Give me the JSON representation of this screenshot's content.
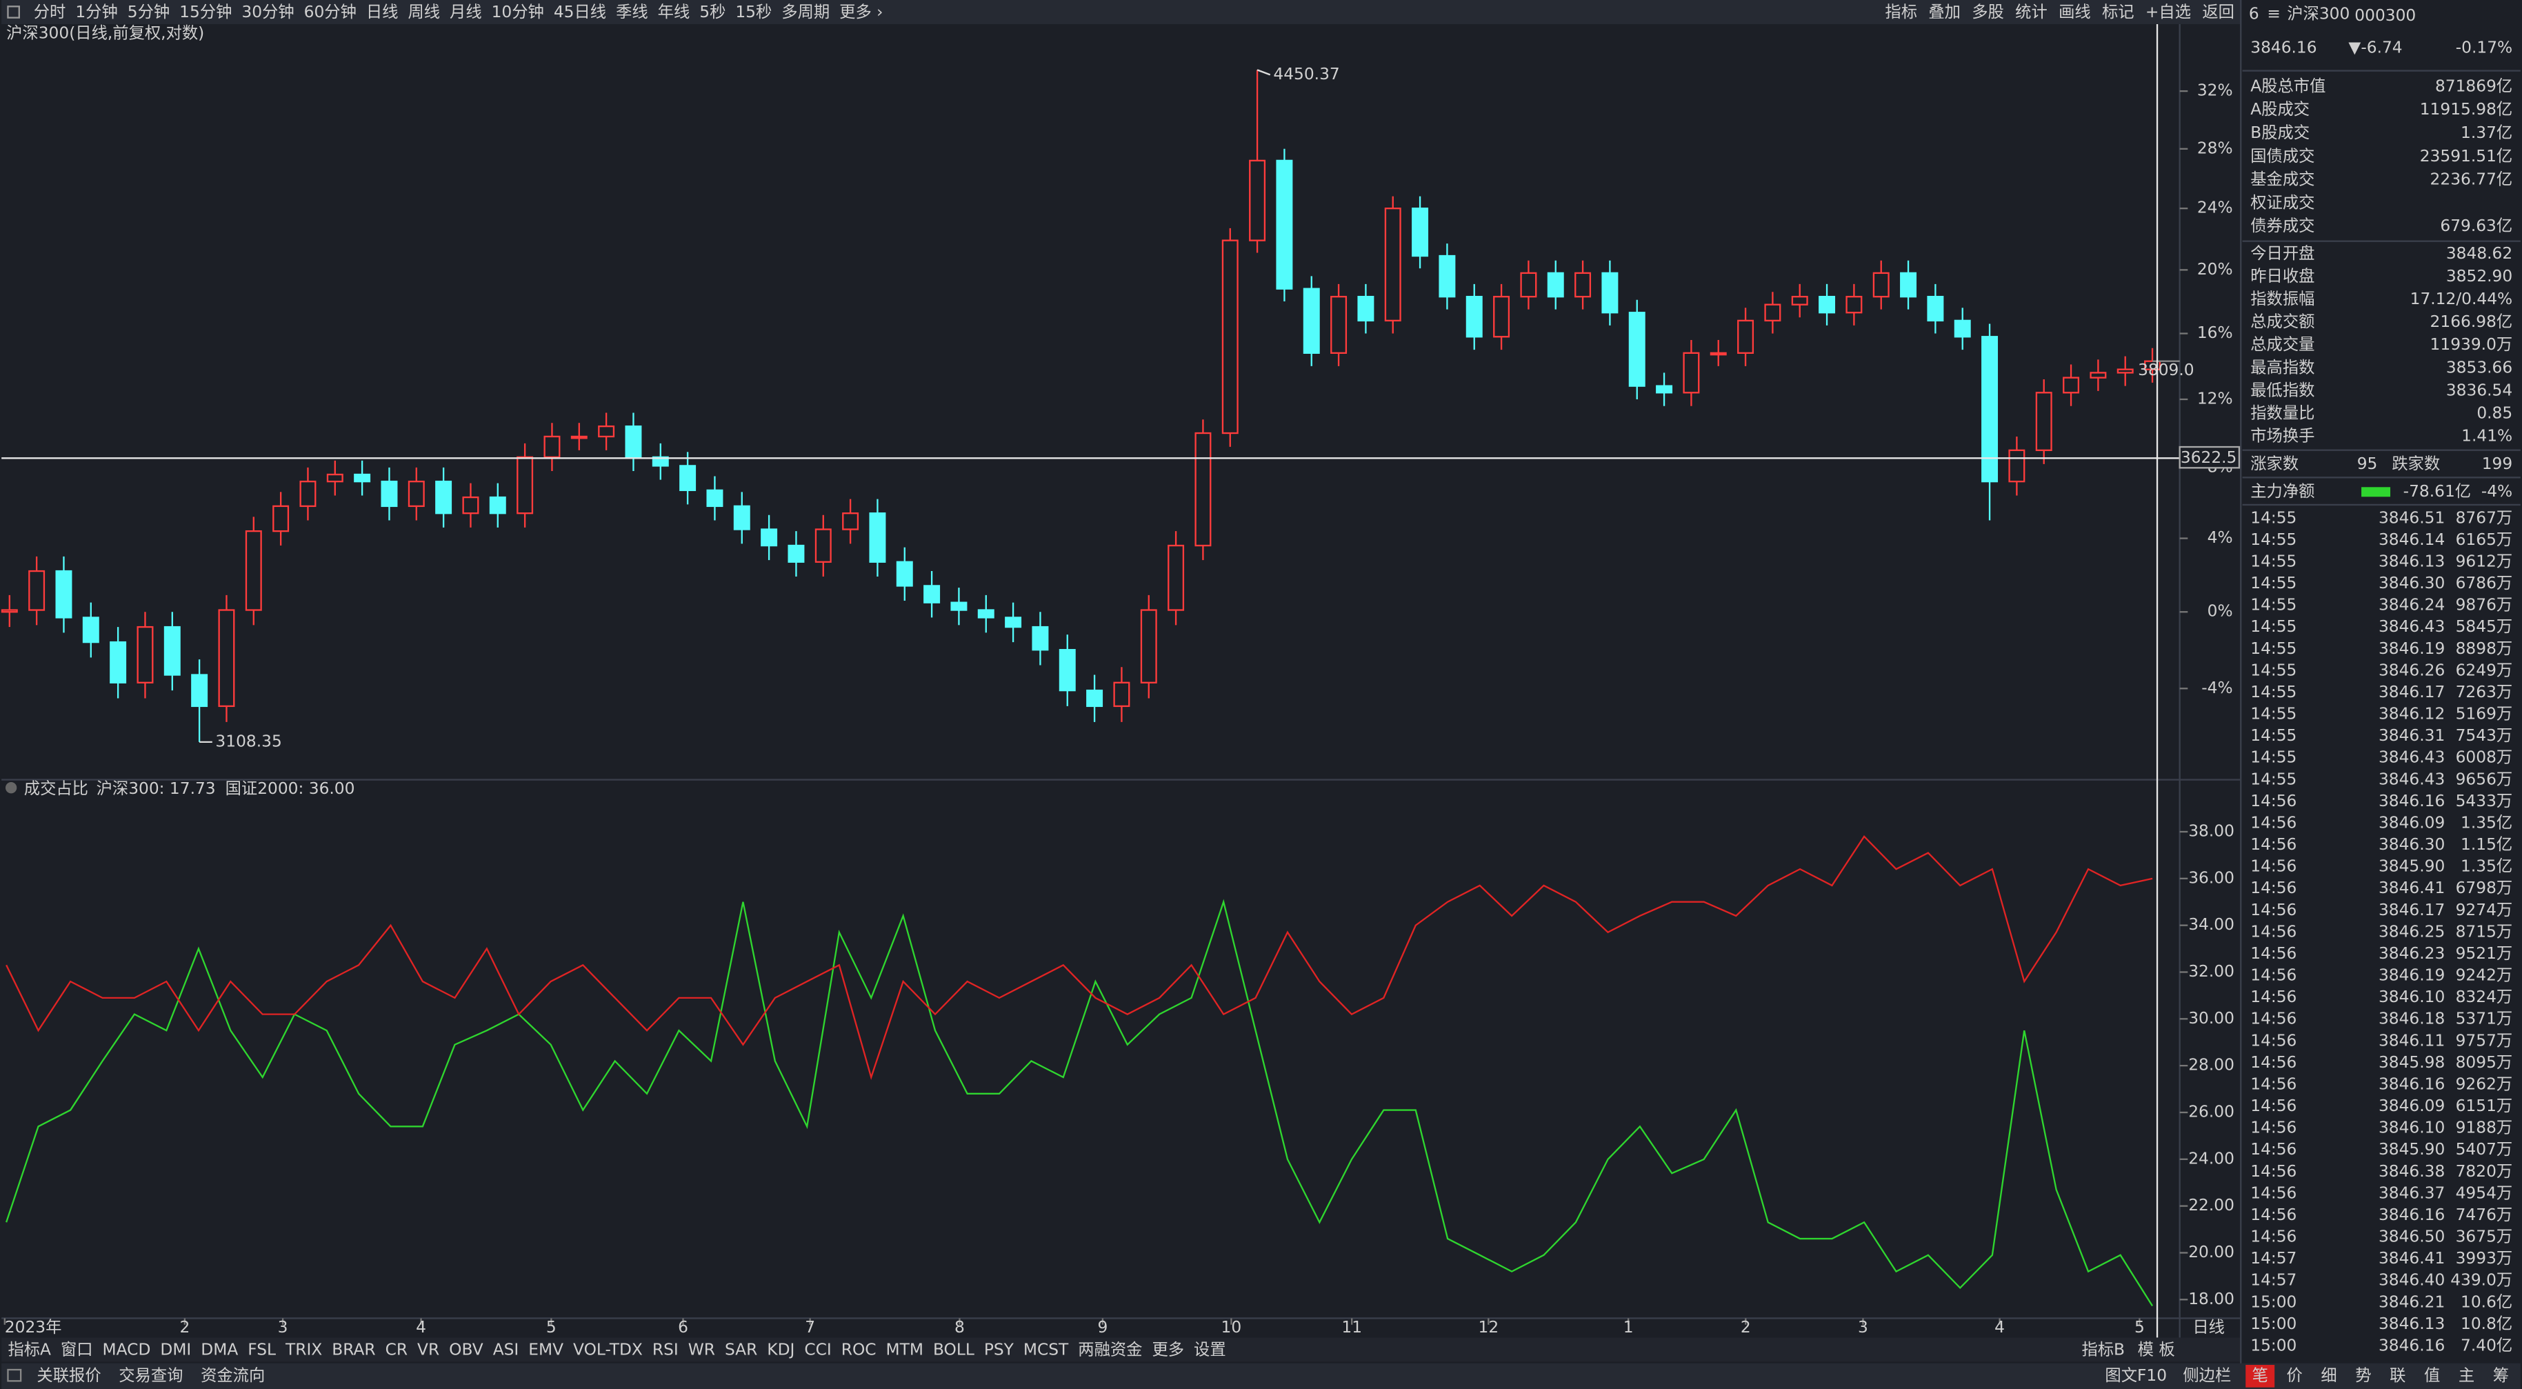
{
  "toolbar": {
    "periods": [
      "分时",
      "1分钟",
      "5分钟",
      "15分钟",
      "30分钟",
      "60分钟",
      "日线",
      "周线",
      "月线",
      "10分钟",
      "45日线",
      "季线",
      "年线",
      "5秒",
      "15秒",
      "多周期",
      "更多 ›"
    ],
    "active_index": 6,
    "active_color": "#ff4040",
    "tools": [
      "指标",
      "叠加",
      "多股",
      "统计",
      "画线",
      "标记",
      "+自选",
      "返回"
    ]
  },
  "chart_title": "沪深300(日线,前复权,对数)",
  "price_chart": {
    "type": "candlestick",
    "log": true,
    "up_color": "#ff3c3c",
    "down_color": "#54fcfc",
    "open": [
      0,
      0.1,
      2.2,
      -0.3,
      -1.6,
      -3.7,
      -0.8,
      -3.3,
      -4.9,
      0.1,
      4.4,
      5.8,
      7.2,
      7.6,
      7.2,
      5.8,
      7.2,
      5.4,
      6.3,
      5.4,
      8.6,
      9.8,
      9.8,
      10.4,
      8.6,
      8.1,
      6.7,
      5.8,
      4.5,
      3.6,
      2.7,
      4.5,
      5.4,
      2.7,
      1.4,
      0.5,
      0.1,
      -0.3,
      -0.8,
      -2.0,
      -4.1,
      -4.9,
      -3.7,
      0.1,
      3.6,
      10.0,
      21.9,
      27.2,
      18.8,
      14.8,
      18.3,
      16.8,
      24.0,
      20.9,
      18.3,
      15.8,
      18.3,
      19.8,
      18.3,
      19.8,
      17.3,
      12.8,
      12.4,
      14.8,
      14.8,
      16.8,
      17.8,
      18.3,
      17.3,
      18.3,
      19.8,
      18.3,
      16.8,
      15.8,
      7.2,
      9.0,
      12.4,
      13.3,
      13.6,
      13.8
    ],
    "high": [
      0.9,
      3.0,
      3.0,
      0.5,
      -0.8,
      0.0,
      0.0,
      -2.5,
      0.9,
      5.2,
      6.6,
      8.0,
      8.4,
      8.4,
      8.0,
      8.0,
      8.0,
      7.1,
      7.1,
      9.4,
      10.6,
      10.6,
      11.2,
      11.2,
      9.4,
      8.9,
      7.5,
      6.6,
      5.3,
      4.4,
      5.3,
      6.2,
      6.2,
      3.5,
      2.2,
      1.3,
      0.9,
      0.5,
      0.0,
      -1.2,
      -3.3,
      -2.9,
      0.9,
      4.4,
      10.8,
      22.7,
      33.5,
      28.0,
      19.6,
      19.1,
      19.1,
      24.8,
      24.8,
      21.7,
      19.1,
      19.1,
      20.6,
      20.6,
      20.6,
      20.6,
      18.1,
      13.6,
      15.6,
      15.6,
      17.6,
      18.6,
      19.1,
      19.1,
      19.1,
      20.6,
      20.6,
      19.1,
      17.6,
      16.6,
      9.8,
      13.2,
      14.1,
      14.4,
      14.6,
      15.1
    ],
    "low": [
      -0.8,
      -0.7,
      -1.1,
      -2.4,
      -4.5,
      -4.5,
      -4.1,
      -6.7,
      -5.7,
      -0.7,
      3.6,
      5.0,
      6.4,
      6.4,
      5.0,
      5.0,
      4.6,
      4.6,
      4.6,
      4.6,
      7.8,
      9.0,
      9.0,
      7.8,
      7.3,
      5.9,
      5.0,
      3.7,
      2.8,
      1.9,
      1.9,
      3.7,
      1.9,
      0.6,
      -0.3,
      -0.7,
      -1.1,
      -1.6,
      -2.8,
      -4.9,
      -5.7,
      -5.7,
      -4.5,
      -0.7,
      2.8,
      9.2,
      21.1,
      18.0,
      14.0,
      14.0,
      16.0,
      16.0,
      20.1,
      17.5,
      15.0,
      15.0,
      17.5,
      17.5,
      17.5,
      16.5,
      12.0,
      11.6,
      11.6,
      14.0,
      14.0,
      16.0,
      17.0,
      16.5,
      16.5,
      17.5,
      17.5,
      16.0,
      15.0,
      5.0,
      6.4,
      8.2,
      11.6,
      12.5,
      12.8,
      13.0
    ],
    "close": [
      0.1,
      2.2,
      -0.3,
      -1.6,
      -3.7,
      -0.8,
      -3.3,
      -4.9,
      0.1,
      4.4,
      5.8,
      7.2,
      7.6,
      7.2,
      5.8,
      7.2,
      5.4,
      6.3,
      5.4,
      8.6,
      9.8,
      9.8,
      10.4,
      8.6,
      8.1,
      6.7,
      5.8,
      4.5,
      3.6,
      2.7,
      4.5,
      5.4,
      2.7,
      1.4,
      0.5,
      0.1,
      -0.3,
      -0.8,
      -2.0,
      -4.1,
      -4.9,
      -3.7,
      0.1,
      3.6,
      10.0,
      21.9,
      27.2,
      18.8,
      14.8,
      18.3,
      16.8,
      24.0,
      20.9,
      18.3,
      15.8,
      18.3,
      19.8,
      18.3,
      19.8,
      17.3,
      12.8,
      12.4,
      14.8,
      14.8,
      16.8,
      17.8,
      18.3,
      17.3,
      18.3,
      19.8,
      18.3,
      16.8,
      15.8,
      7.2,
      9.0,
      12.4,
      13.3,
      13.6,
      13.8,
      14.3
    ],
    "ylim": [
      -8.4,
      36.8
    ],
    "yticks": [
      {
        "value": -4,
        "label": "-4%"
      },
      {
        "value": 0,
        "label": "0%"
      },
      {
        "value": 4,
        "label": "4%"
      },
      {
        "value": 8,
        "label": "8%"
      },
      {
        "value": 12,
        "label": "12%"
      },
      {
        "value": 16,
        "label": "16%"
      },
      {
        "value": 20,
        "label": "20%"
      },
      {
        "value": 24,
        "label": "24%"
      },
      {
        "value": 28,
        "label": "28%"
      },
      {
        "value": 32,
        "label": "32%"
      }
    ],
    "max_label": 4450.37,
    "min_label": 3108.35,
    "last_label": "3809.0",
    "cursor_label": "3622.5"
  },
  "x_axis": {
    "labels": [
      "2023年",
      "2",
      "3",
      "4",
      "5",
      "6",
      "7",
      "8",
      "9",
      "10",
      "11",
      "12",
      "1",
      "2",
      "3",
      "4",
      "5"
    ],
    "period_label": "日线"
  },
  "ratio_chart": {
    "type": "line",
    "title": "成交占比",
    "series": [
      {
        "name": "沪深300: 17.73",
        "color": "#2fd62f",
        "values": [
          21.3,
          25.4,
          26.1,
          28.2,
          30.2,
          29.5,
          33.0,
          29.5,
          27.5,
          30.2,
          29.5,
          26.8,
          25.4,
          25.4,
          28.9,
          29.5,
          30.2,
          28.9,
          26.1,
          28.2,
          26.8,
          29.5,
          28.2,
          35.0,
          28.2,
          25.4,
          33.7,
          30.9,
          34.4,
          29.5,
          26.8,
          26.8,
          28.2,
          27.5,
          31.6,
          28.9,
          30.2,
          30.9,
          35.0,
          29.5,
          24.0,
          21.3,
          24.0,
          26.1,
          26.1,
          20.6,
          19.9,
          19.2,
          19.9,
          21.3,
          24.0,
          25.4,
          23.4,
          24.0,
          26.1,
          21.3,
          20.6,
          20.6,
          21.3,
          19.2,
          19.9,
          18.5,
          19.9,
          29.5,
          22.7,
          19.2,
          19.9,
          17.73
        ]
      },
      {
        "name": "国证2000: 36.00",
        "color": "#e02424",
        "values": [
          32.3,
          29.5,
          31.6,
          30.9,
          30.9,
          31.6,
          29.5,
          31.6,
          30.2,
          30.2,
          31.6,
          32.3,
          34.0,
          31.6,
          30.9,
          33.0,
          30.2,
          31.6,
          32.3,
          30.9,
          29.5,
          30.9,
          30.9,
          28.9,
          30.9,
          31.6,
          32.3,
          27.5,
          31.6,
          30.2,
          31.6,
          30.9,
          31.6,
          32.3,
          30.9,
          30.2,
          30.9,
          32.3,
          30.2,
          30.9,
          33.7,
          31.6,
          30.2,
          30.9,
          34.0,
          35.0,
          35.7,
          34.4,
          35.7,
          35.0,
          33.7,
          34.4,
          35.0,
          35.0,
          34.4,
          35.7,
          36.4,
          35.7,
          37.8,
          36.4,
          37.1,
          35.7,
          36.4,
          31.6,
          33.7,
          36.4,
          35.7,
          36.0
        ]
      }
    ],
    "ylim": [
      17.2,
      39.4
    ],
    "yticks": [
      {
        "value": 18,
        "label": "18.00"
      },
      {
        "value": 20,
        "label": "20.00"
      },
      {
        "value": 22,
        "label": "22.00"
      },
      {
        "value": 24,
        "label": "24.00"
      },
      {
        "value": 26,
        "label": "26.00"
      },
      {
        "value": 28,
        "label": "28.00"
      },
      {
        "value": 30,
        "label": "30.00"
      },
      {
        "value": 32,
        "label": "32.00"
      },
      {
        "value": 34,
        "label": "34.00"
      },
      {
        "value": 36,
        "label": "36.00"
      },
      {
        "value": 38,
        "label": "38.00"
      }
    ]
  },
  "indicator_tabs": {
    "left": [
      "指标A",
      "窗口",
      "MACD",
      "DMI",
      "DMA",
      "FSL",
      "TRIX",
      "BRAR",
      "CR",
      "VR",
      "OBV",
      "ASI",
      "EMV",
      "VOL-TDX",
      "RSI",
      "WR",
      "SAR",
      "KDJ",
      "CCI",
      "ROC",
      "MTM",
      "BOLL",
      "PSY",
      "MCST",
      "两融资金",
      "更多",
      "设置"
    ],
    "right": [
      "指标B",
      "模 板"
    ]
  },
  "status_bar": {
    "left": [
      "关联报价",
      "交易查询",
      "资金流向"
    ],
    "right": [
      "图文F10",
      "侧边栏"
    ],
    "tabs": [
      "笔",
      "价",
      "细",
      "势",
      "联",
      "值",
      "主",
      "筹"
    ]
  },
  "quote": {
    "rank": "6",
    "menu": "≡",
    "name": "沪深300",
    "code": "000300",
    "price": "3846.16",
    "change": "▼-6.74",
    "pct": "-0.17%",
    "market": [
      {
        "label": "A股总市值",
        "value": "871869亿"
      },
      {
        "label": "A股成交",
        "value": "11915.98亿"
      },
      {
        "label": "B股成交",
        "value": "1.37亿"
      },
      {
        "label": "国债成交",
        "value": "23591.51亿"
      },
      {
        "label": "基金成交",
        "value": "2236.77亿"
      },
      {
        "label": "权证成交"
      },
      {
        "label": "债券成交",
        "value": "679.63亿"
      }
    ],
    "stats": [
      {
        "label": "今日开盘",
        "value": "3848.62",
        "color": "#2fd62f"
      },
      {
        "label": "昨日收盘",
        "value": "3852.90"
      },
      {
        "label": "指数振幅",
        "value": "17.12/0.44%"
      },
      {
        "label": "总成交额",
        "value": "2166.98亿"
      },
      {
        "label": "总成交量",
        "value": "11939.0万"
      },
      {
        "label": "最高指数",
        "value": "3853.66",
        "color": "#ff4040"
      },
      {
        "label": "最低指数",
        "value": "3836.54",
        "color": "#2fd62f"
      },
      {
        "label": "指数量比",
        "value": "0.85",
        "color": "#2fd62f"
      },
      {
        "label": "市场换手",
        "value": "1.41%"
      }
    ],
    "breadth": {
      "up_label": "涨家数",
      "up": "95",
      "down_label": "跌家数",
      "down": "199"
    },
    "flow": {
      "label": "主力净额",
      "value": "-78.61亿",
      "pct": "-4%"
    },
    "ticks": [
      [
        "14:55",
        "3846.51",
        "8767万"
      ],
      [
        "14:55",
        "3846.14",
        "6165万"
      ],
      [
        "14:55",
        "3846.13",
        "9612万"
      ],
      [
        "14:55",
        "3846.30",
        "6786万"
      ],
      [
        "14:55",
        "3846.24",
        "9876万"
      ],
      [
        "14:55",
        "3846.43",
        "5845万"
      ],
      [
        "14:55",
        "3846.19",
        "8898万"
      ],
      [
        "14:55",
        "3846.26",
        "6249万"
      ],
      [
        "14:55",
        "3846.17",
        "7263万"
      ],
      [
        "14:55",
        "3846.12",
        "5169万"
      ],
      [
        "14:55",
        "3846.31",
        "7543万"
      ],
      [
        "14:55",
        "3846.43",
        "6008万"
      ],
      [
        "14:55",
        "3846.43",
        "9656万"
      ],
      [
        "14:56",
        "3846.16",
        "5433万"
      ],
      [
        "14:56",
        "3846.09",
        "1.35亿"
      ],
      [
        "14:56",
        "3846.30",
        "1.15亿"
      ],
      [
        "14:56",
        "3845.90",
        "1.35亿"
      ],
      [
        "14:56",
        "3846.41",
        "6798万"
      ],
      [
        "14:56",
        "3846.17",
        "9274万"
      ],
      [
        "14:56",
        "3846.25",
        "8715万"
      ],
      [
        "14:56",
        "3846.23",
        "9521万"
      ],
      [
        "14:56",
        "3846.19",
        "9242万"
      ],
      [
        "14:56",
        "3846.10",
        "8324万"
      ],
      [
        "14:56",
        "3846.18",
        "5371万"
      ],
      [
        "14:56",
        "3846.11",
        "9757万"
      ],
      [
        "14:56",
        "3845.98",
        "8095万"
      ],
      [
        "14:56",
        "3846.16",
        "9262万"
      ],
      [
        "14:56",
        "3846.09",
        "6151万"
      ],
      [
        "14:56",
        "3846.10",
        "9188万"
      ],
      [
        "14:56",
        "3845.90",
        "5407万"
      ],
      [
        "14:56",
        "3846.38",
        "7820万"
      ],
      [
        "14:56",
        "3846.37",
        "4954万"
      ],
      [
        "14:56",
        "3846.16",
        "7476万"
      ],
      [
        "14:56",
        "3846.50",
        "3675万"
      ],
      [
        "14:57",
        "3846.41",
        "3993万"
      ],
      [
        "14:57",
        "3846.40",
        "439.0万"
      ],
      [
        "15:00",
        "3846.21",
        "10.6亿"
      ],
      [
        "15:00",
        "3846.13",
        "10.8亿"
      ],
      [
        "15:00",
        "3846.16",
        "7.40亿"
      ]
    ]
  }
}
